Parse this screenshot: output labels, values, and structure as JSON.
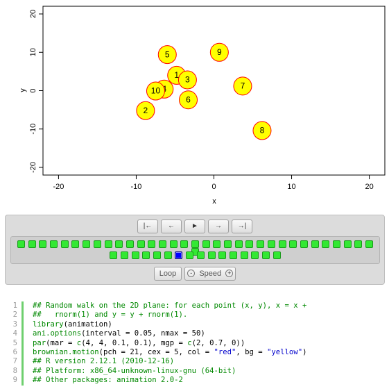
{
  "plot": {
    "xlabel": "x",
    "ylabel": "y",
    "xlim": [
      -22,
      22
    ],
    "ylim": [
      -22,
      22
    ],
    "x_ticks": [
      "-20",
      "-10",
      "0",
      "10",
      "20"
    ],
    "y_ticks": [
      "-20",
      "-10",
      "0",
      "10",
      "20"
    ],
    "point_fill": "#ffff00",
    "point_stroke": "#ff0000"
  },
  "chart_data": {
    "type": "scatter",
    "xlim": [
      -22,
      22
    ],
    "ylim": [
      -22,
      22
    ],
    "points": [
      {
        "label": "1",
        "x": -4.8,
        "y": 4.0
      },
      {
        "label": "2",
        "x": -8.8,
        "y": -5.2
      },
      {
        "label": "3",
        "x": -3.4,
        "y": 2.8
      },
      {
        "label": "4",
        "x": -6.4,
        "y": 0.4
      },
      {
        "label": "5",
        "x": -6.0,
        "y": 9.4
      },
      {
        "label": "6",
        "x": -3.3,
        "y": -2.4
      },
      {
        "label": "7",
        "x": 3.7,
        "y": 1.2
      },
      {
        "label": "8",
        "x": 6.2,
        "y": -10.4
      },
      {
        "label": "9",
        "x": 0.7,
        "y": 10.0
      },
      {
        "label": "10",
        "x": -7.5,
        "y": -0.1
      }
    ]
  },
  "player": {
    "first_icon": "|←",
    "prev_icon": "←",
    "play_icon": "►",
    "next_icon": "→",
    "last_icon": "→|",
    "frame_count": 50,
    "current_frame": 41,
    "row1_count": 34,
    "loop_label": "Loop",
    "speed_minus": "-",
    "speed_label": "Speed",
    "speed_plus": "+",
    "frame_on_color": "#33e833",
    "frame_current_color": "#0000ff"
  },
  "code": {
    "lines": [
      {
        "n": "1",
        "html": "<span class=\"c\">## Random walk on the 2D plane: for each point (x, y), x = x +</span>"
      },
      {
        "n": "2",
        "html": "<span class=\"c\">##   rnorm(1) and y = y + rnorm(1).</span>"
      },
      {
        "n": "3",
        "html": "<span class=\"k\">library</span>(animation)"
      },
      {
        "n": "4",
        "html": "<span class=\"k\">ani.options</span>(interval = 0.05, nmax = 50)"
      },
      {
        "n": "5",
        "html": "<span class=\"k\">par</span>(mar = <span class=\"k\">c</span>(4, 4, 0.1, 0.1), mgp = <span class=\"k\">c</span>(2, 0.7, 0))"
      },
      {
        "n": "6",
        "html": "<span class=\"k\">brownian.motion</span>(pch = 21, cex = 5, col = <span class=\"s\">\"red\"</span>, bg = <span class=\"s\">\"yellow\"</span>)"
      },
      {
        "n": "7",
        "html": "<span class=\"c\">## R version 2.12.1 (2010-12-16)</span>"
      },
      {
        "n": "8",
        "html": "<span class=\"c\">## Platform: x86_64-unknown-linux-gnu (64-bit)</span>"
      },
      {
        "n": "9",
        "html": "<span class=\"c\">## Other packages: animation 2.0-2</span>"
      }
    ]
  }
}
